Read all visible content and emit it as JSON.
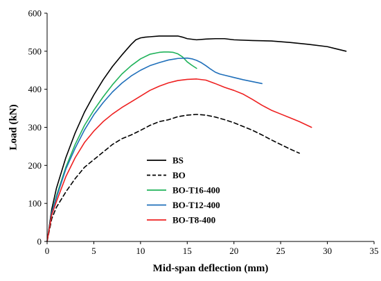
{
  "chart_data": {
    "type": "line",
    "title": "",
    "xlabel": "Mid-span deflection (mm)",
    "ylabel": "Load (kN)",
    "xlim": [
      0,
      35
    ],
    "ylim": [
      0,
      600
    ],
    "xticks": [
      0,
      5,
      10,
      15,
      20,
      25,
      30,
      35
    ],
    "yticks": [
      0,
      100,
      200,
      300,
      400,
      500,
      600
    ],
    "grid": false,
    "legend": "center-left",
    "series": [
      {
        "name": "BS",
        "color": "#000000",
        "dash": "solid",
        "x": [
          0,
          0.5,
          1,
          2,
          3,
          4,
          5,
          6,
          7,
          8,
          9,
          9.5,
          10,
          10.5,
          11,
          12,
          13,
          14,
          14.5,
          15,
          16,
          17,
          18,
          19,
          20,
          22,
          24,
          26,
          28,
          30,
          31,
          32
        ],
        "y": [
          0,
          85,
          140,
          220,
          285,
          340,
          385,
          425,
          460,
          490,
          518,
          530,
          535,
          537,
          538,
          540,
          540,
          540,
          537,
          533,
          530,
          532,
          533,
          533,
          530,
          528,
          527,
          523,
          518,
          512,
          506,
          500
        ]
      },
      {
        "name": "BO",
        "color": "#000000",
        "dash": "dashed",
        "x": [
          0,
          0.5,
          1,
          2,
          3,
          4,
          5,
          6,
          7,
          8,
          9,
          10,
          11,
          12,
          13,
          14,
          15,
          16,
          17,
          18,
          19,
          20,
          21,
          22,
          23,
          24,
          25,
          26,
          27
        ],
        "y": [
          0,
          60,
          90,
          130,
          165,
          195,
          215,
          235,
          255,
          270,
          280,
          292,
          305,
          315,
          320,
          328,
          332,
          334,
          332,
          327,
          320,
          312,
          302,
          292,
          280,
          267,
          255,
          243,
          232
        ]
      },
      {
        "name": "BO-T16-400",
        "color": "#1fb25a",
        "dash": "solid",
        "x": [
          0,
          0.5,
          1,
          2,
          3,
          4,
          5,
          6,
          7,
          8,
          9,
          10,
          11,
          12,
          12.5,
          13,
          13.5,
          14,
          14.5,
          15,
          15.5,
          16
        ],
        "y": [
          0,
          75,
          120,
          195,
          255,
          305,
          345,
          380,
          412,
          440,
          462,
          480,
          492,
          497,
          498,
          498,
          497,
          493,
          485,
          472,
          463,
          455
        ]
      },
      {
        "name": "BO-T12-400",
        "color": "#1f6fba",
        "dash": "solid",
        "x": [
          0,
          0.5,
          1,
          2,
          3,
          4,
          5,
          6,
          7,
          8,
          9,
          10,
          11,
          12,
          13,
          14,
          15,
          15.5,
          16,
          16.5,
          17,
          17.5,
          18,
          18.5,
          19,
          20,
          21,
          22,
          23
        ],
        "y": [
          0,
          75,
          115,
          190,
          245,
          293,
          333,
          365,
          393,
          416,
          435,
          450,
          462,
          470,
          477,
          481,
          482,
          480,
          476,
          470,
          462,
          453,
          445,
          440,
          437,
          431,
          425,
          420,
          415
        ]
      },
      {
        "name": "BO-T8-400",
        "color": "#ee2020",
        "dash": "solid",
        "x": [
          0,
          0.5,
          1,
          2,
          3,
          4,
          5,
          6,
          7,
          8,
          9,
          10,
          11,
          12,
          13,
          14,
          15,
          16,
          17,
          18,
          19,
          20,
          21,
          22,
          23,
          24,
          25,
          26,
          27,
          28.3
        ],
        "y": [
          0,
          70,
          105,
          170,
          220,
          260,
          290,
          315,
          335,
          352,
          367,
          382,
          397,
          408,
          417,
          423,
          426,
          427,
          424,
          415,
          405,
          397,
          387,
          373,
          358,
          345,
          335,
          325,
          315,
          300
        ]
      }
    ]
  }
}
